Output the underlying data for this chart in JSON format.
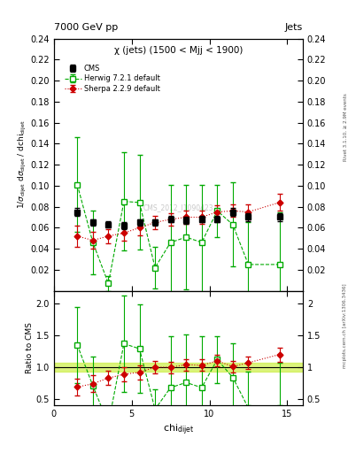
{
  "title_top": "7000 GeV pp",
  "title_right": "Jets",
  "subtitle": "χ (jets) (1500 < Mjj < 1900)",
  "watermark": "CMS_2012_I1090423",
  "ylabel_main": "1/σ_{dijet} dσ_{dijet} / dchi_{dijet}",
  "ylabel_ratio": "Ratio to CMS",
  "xlabel": "chi_{dijet}",
  "right_label_top": "Rivet 3.1.10, ≥ 2.9M events",
  "right_label_bottom": "mcplots.cern.ch [arXiv:1306.3436]",
  "cms_x": [
    1.5,
    2.5,
    3.5,
    4.5,
    5.5,
    6.5,
    7.5,
    8.5,
    9.5,
    10.5,
    11.5,
    12.5,
    14.5
  ],
  "cms_y": [
    0.075,
    0.065,
    0.063,
    0.062,
    0.065,
    0.065,
    0.068,
    0.067,
    0.068,
    0.068,
    0.075,
    0.07,
    0.07
  ],
  "cms_yerr": [
    0.004,
    0.003,
    0.003,
    0.003,
    0.003,
    0.003,
    0.003,
    0.003,
    0.003,
    0.003,
    0.004,
    0.004,
    0.004
  ],
  "herwig_x": [
    1.5,
    2.5,
    3.5,
    4.5,
    5.5,
    6.5,
    7.5,
    8.5,
    9.5,
    10.5,
    11.5,
    12.5,
    14.5
  ],
  "herwig_y": [
    0.101,
    0.046,
    0.007,
    0.085,
    0.084,
    0.022,
    0.046,
    0.051,
    0.046,
    0.076,
    0.063,
    0.025,
    0.025
  ],
  "herwig_yerr": [
    0.045,
    0.03,
    0.007,
    0.047,
    0.045,
    0.02,
    0.055,
    0.05,
    0.055,
    0.025,
    0.04,
    0.04,
    0.05
  ],
  "sherpa_x": [
    1.5,
    2.5,
    3.5,
    4.5,
    5.5,
    6.5,
    7.5,
    8.5,
    9.5,
    10.5,
    11.5,
    12.5,
    14.5
  ],
  "sherpa_y": [
    0.052,
    0.048,
    0.052,
    0.055,
    0.06,
    0.065,
    0.068,
    0.07,
    0.07,
    0.075,
    0.076,
    0.075,
    0.084
  ],
  "sherpa_yerr": [
    0.01,
    0.008,
    0.007,
    0.007,
    0.007,
    0.006,
    0.006,
    0.006,
    0.006,
    0.006,
    0.006,
    0.007,
    0.008
  ],
  "herwig_ratio_y": [
    1.35,
    0.71,
    0.11,
    1.37,
    1.29,
    0.34,
    0.68,
    0.76,
    0.68,
    1.12,
    0.84,
    0.36,
    0.36
  ],
  "herwig_ratio_yerr": [
    0.6,
    0.46,
    0.11,
    0.76,
    0.69,
    0.31,
    0.81,
    0.75,
    0.81,
    0.37,
    0.53,
    0.57,
    0.71
  ],
  "sherpa_ratio_y": [
    0.69,
    0.74,
    0.83,
    0.89,
    0.92,
    1.0,
    1.0,
    1.04,
    1.03,
    1.1,
    1.01,
    1.07,
    1.2
  ],
  "sherpa_ratio_yerr": [
    0.13,
    0.13,
    0.11,
    0.11,
    0.11,
    0.1,
    0.09,
    0.09,
    0.09,
    0.09,
    0.09,
    0.1,
    0.11
  ],
  "cms_color": "#000000",
  "herwig_color": "#00aa00",
  "sherpa_color": "#cc0000",
  "xlim": [
    0,
    16
  ],
  "ylim_main": [
    0.0,
    0.24
  ],
  "ylim_ratio": [
    0.4,
    2.2
  ],
  "yticks_main": [
    0.02,
    0.04,
    0.06,
    0.08,
    0.1,
    0.12,
    0.14,
    0.16,
    0.18,
    0.2,
    0.22,
    0.24
  ],
  "yticks_ratio": [
    0.5,
    1.0,
    1.5,
    2.0
  ],
  "xticks_main": [
    0,
    5,
    10,
    15
  ],
  "xticks_ratio": [
    0,
    5,
    10,
    15
  ]
}
